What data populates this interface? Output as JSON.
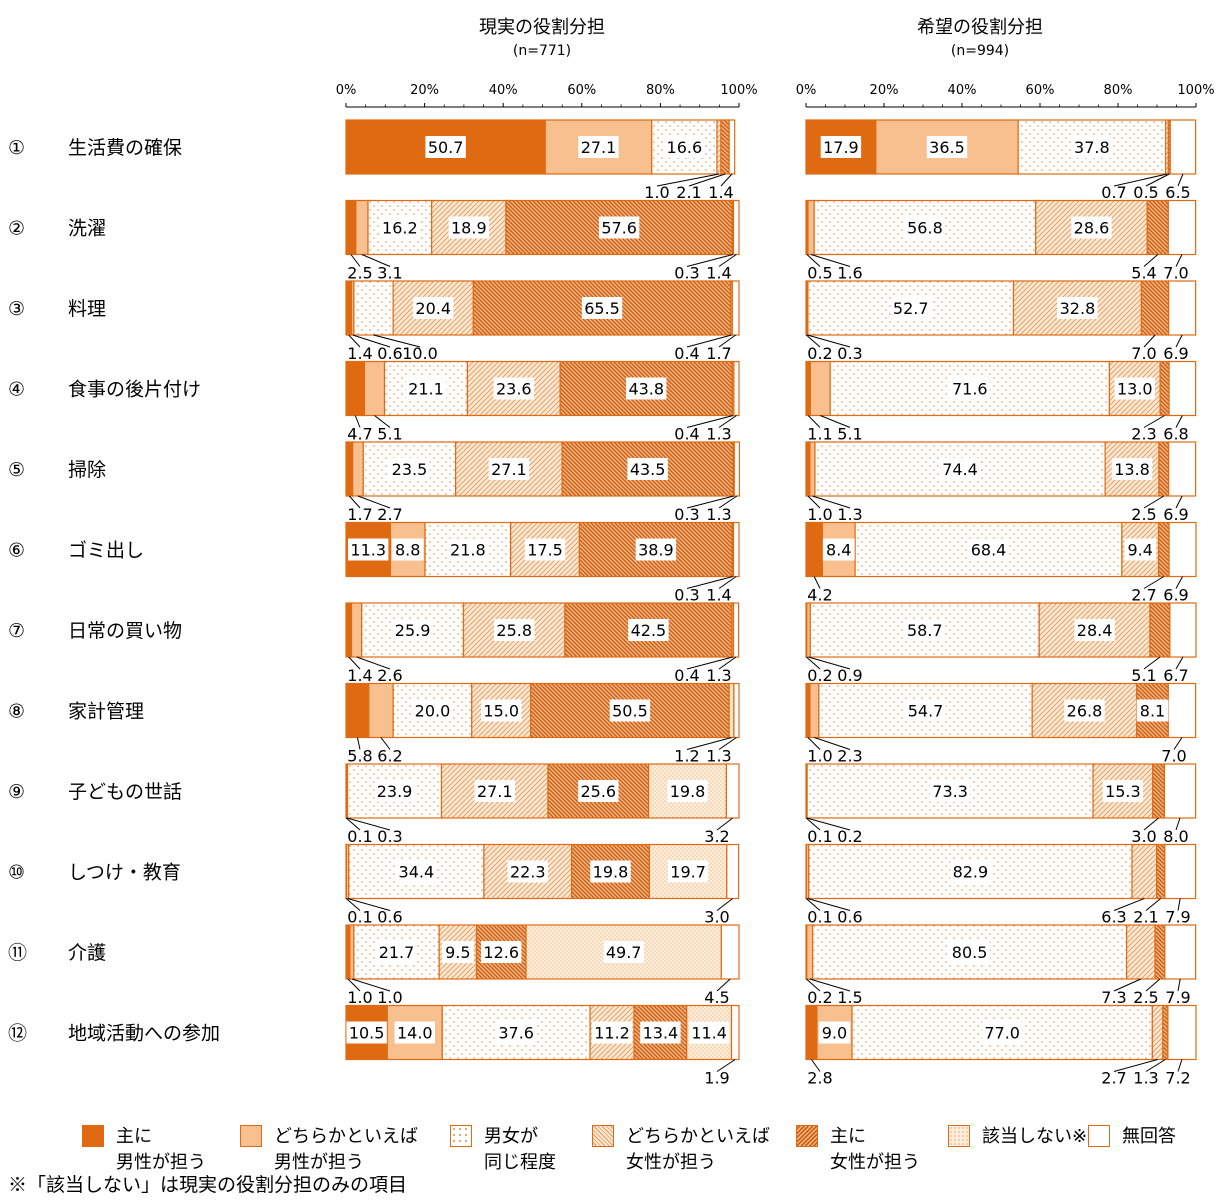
{
  "chart_data": {
    "type": "bar",
    "orientation": "horizontal-stacked-100",
    "categories": [
      "① 生活費の確保",
      "② 洗濯",
      "③ 料理",
      "④ 食事の後片付け",
      "⑤ 掃除",
      "⑥ ゴミ出し",
      "⑦ 日常の買い物",
      "⑧ 家計管理",
      "⑨ 子どもの世話",
      "⑩ しつけ・教育",
      "⑪ 介護",
      "⑫ 地域活動への参加"
    ],
    "category_numbers": [
      "①",
      "②",
      "③",
      "④",
      "⑤",
      "⑥",
      "⑦",
      "⑧",
      "⑨",
      "⑩",
      "⑪",
      "⑫"
    ],
    "category_names": [
      "生活費の確保",
      "洗濯",
      "料理",
      "食事の後片付け",
      "掃除",
      "ゴミ出し",
      "日常の買い物",
      "家計管理",
      "子どもの世話",
      "しつけ・教育",
      "介護",
      "地域活動への参加"
    ],
    "xlim": [
      0,
      100
    ],
    "tick_labels": [
      "0%",
      "20%",
      "40%",
      "60%",
      "80%",
      "100%"
    ],
    "legend_position": "bottom",
    "series": [
      {
        "name": "主に男性が担う",
        "label": "主に\n男性が担う",
        "pattern": "solid",
        "color": "#e06a12"
      },
      {
        "name": "どちらかといえば男性が担う",
        "label": "どちらかといえば\n男性が担う",
        "pattern": "light",
        "color": "#f8bf8f"
      },
      {
        "name": "男女が同じ程度",
        "label": "男女が\n同じ程度",
        "pattern": "dots",
        "color": "#ffffff"
      },
      {
        "name": "どちらかといえば女性が担う",
        "label": "どちらかといえば\n女性が担う",
        "pattern": "diag-light",
        "color": "#fbe3c9"
      },
      {
        "name": "主に女性が担う",
        "label": "主に\n女性が担う",
        "pattern": "diag-dense",
        "color": "#e8a070"
      },
      {
        "name": "該当しない※",
        "label": "該当しない※",
        "pattern": "stipple",
        "color": "#fbe9d5"
      },
      {
        "name": "無回答",
        "label": "無回答",
        "pattern": "white",
        "color": "#ffffff"
      }
    ],
    "panels": [
      {
        "title": "現実の役割分担",
        "subtitle": "(n=771)",
        "values": [
          [
            50.7,
            27.1,
            16.6,
            1.0,
            2.1,
            null,
            1.4
          ],
          [
            2.5,
            3.1,
            16.2,
            18.9,
            57.6,
            0.3,
            1.4
          ],
          [
            1.4,
            0.6,
            10.0,
            20.4,
            65.5,
            0.4,
            1.7
          ],
          [
            4.7,
            5.1,
            21.1,
            23.6,
            43.8,
            0.4,
            1.3
          ],
          [
            1.7,
            2.7,
            23.5,
            27.1,
            43.5,
            0.3,
            1.3
          ],
          [
            11.3,
            8.8,
            21.8,
            17.5,
            38.9,
            0.3,
            1.4
          ],
          [
            1.4,
            2.6,
            25.9,
            25.8,
            42.5,
            0.4,
            1.3
          ],
          [
            5.8,
            6.2,
            20.0,
            15.0,
            50.5,
            1.2,
            1.3
          ],
          [
            0.1,
            0.3,
            23.9,
            27.1,
            25.6,
            19.8,
            3.2
          ],
          [
            0.1,
            0.6,
            34.4,
            22.3,
            19.8,
            19.7,
            3.0
          ],
          [
            1.0,
            1.0,
            21.7,
            9.5,
            12.6,
            49.7,
            4.5
          ],
          [
            10.5,
            14.0,
            37.6,
            11.2,
            13.4,
            11.4,
            1.9
          ]
        ]
      },
      {
        "title": "希望の役割分担",
        "subtitle": "(n=994)",
        "values": [
          [
            17.9,
            36.5,
            37.8,
            0.7,
            0.5,
            null,
            6.5
          ],
          [
            0.5,
            1.6,
            56.8,
            28.6,
            5.4,
            null,
            7.0
          ],
          [
            0.2,
            0.3,
            52.7,
            32.8,
            7.0,
            null,
            6.9
          ],
          [
            1.1,
            5.1,
            71.6,
            13.0,
            2.3,
            null,
            6.8
          ],
          [
            1.0,
            1.3,
            74.4,
            13.8,
            2.5,
            null,
            6.9
          ],
          [
            4.2,
            8.4,
            68.4,
            9.4,
            2.7,
            null,
            6.9
          ],
          [
            0.2,
            0.9,
            58.7,
            28.4,
            5.1,
            null,
            6.7
          ],
          [
            1.0,
            2.3,
            54.7,
            26.8,
            8.1,
            null,
            7.0
          ],
          [
            0.1,
            0.2,
            73.3,
            15.3,
            3.0,
            null,
            8.0
          ],
          [
            0.1,
            0.6,
            82.9,
            6.3,
            2.1,
            null,
            7.9
          ],
          [
            0.2,
            1.5,
            80.5,
            7.3,
            2.5,
            null,
            7.9
          ],
          [
            2.8,
            9.0,
            77.0,
            2.7,
            1.3,
            null,
            7.2
          ]
        ]
      }
    ],
    "note": "※「該当しない」は現実の役割分担のみの項目"
  }
}
